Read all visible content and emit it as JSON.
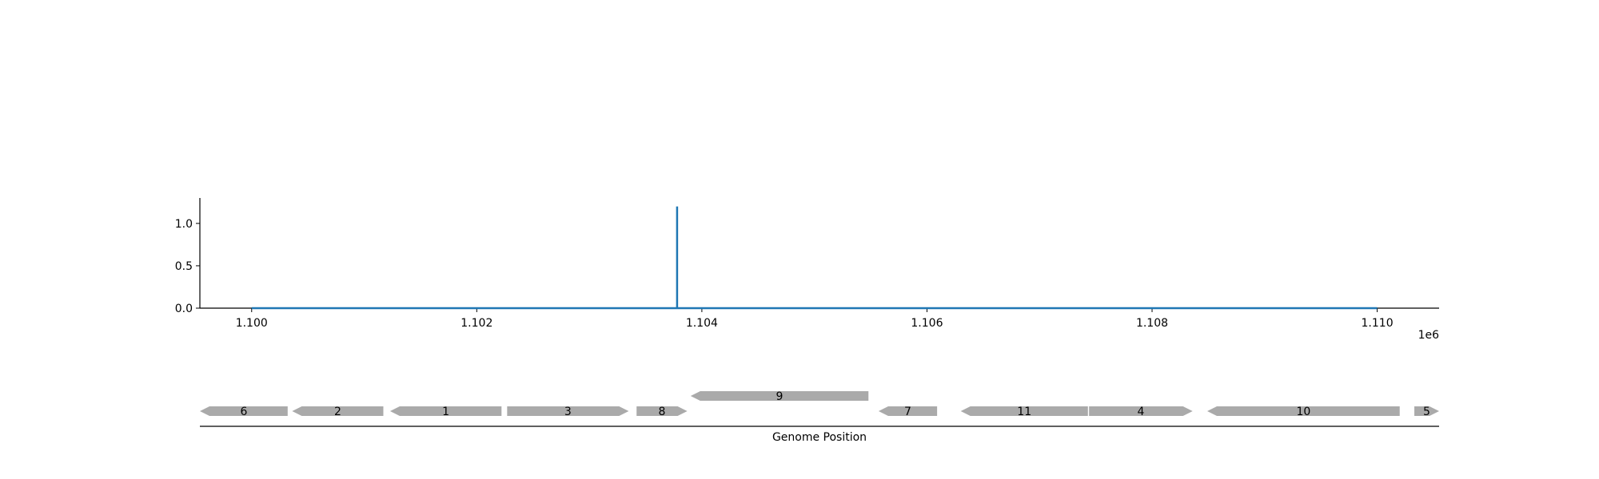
{
  "chart_data": [
    {
      "type": "line",
      "x_scale_label": "1e6",
      "xlim": [
        1.09954,
        1.11055
      ],
      "ylim": [
        0,
        1.3
      ],
      "x_ticks": [
        1.1,
        1.102,
        1.104,
        1.106,
        1.108,
        1.11
      ],
      "x_tick_labels": [
        "1.100",
        "1.102",
        "1.104",
        "1.106",
        "1.108",
        "1.110"
      ],
      "y_ticks": [
        0.0,
        0.5,
        1.0
      ],
      "y_tick_labels": [
        "0.0",
        "0.5",
        "1.0"
      ],
      "grid": false,
      "series": [
        {
          "color": "#1f77b4",
          "x": [
            1.1,
            1.10378,
            1.10378,
            1.10378,
            1.11
          ],
          "y": [
            0,
            0,
            1.2,
            0,
            0
          ]
        }
      ]
    },
    {
      "type": "gene-map",
      "xlabel": "Genome Position",
      "xlim": [
        1.09954,
        1.11055
      ],
      "gene_color": "#aaaaaa",
      "genes": [
        {
          "label": "6",
          "start": 1.09954,
          "end": 1.10032,
          "strand": "-",
          "row": 0
        },
        {
          "label": "2",
          "start": 1.10036,
          "end": 1.10117,
          "strand": "-",
          "row": 0
        },
        {
          "label": "1",
          "start": 1.10123,
          "end": 1.10222,
          "strand": "-",
          "row": 0
        },
        {
          "label": "3",
          "start": 1.10227,
          "end": 1.10335,
          "strand": "+",
          "row": 0
        },
        {
          "label": "8",
          "start": 1.10342,
          "end": 1.10387,
          "strand": "+",
          "row": 0
        },
        {
          "label": "9",
          "start": 1.1039,
          "end": 1.10548,
          "strand": "-",
          "row": 1
        },
        {
          "label": "7",
          "start": 1.10557,
          "end": 1.10609,
          "strand": "-",
          "row": 0
        },
        {
          "label": "11",
          "start": 1.1063,
          "end": 1.10743,
          "strand": "-",
          "row": 0
        },
        {
          "label": "4",
          "start": 1.10744,
          "end": 1.10836,
          "strand": "+",
          "row": 0
        },
        {
          "label": "10",
          "start": 1.10849,
          "end": 1.1102,
          "strand": "-",
          "row": 0
        },
        {
          "label": "5",
          "start": 1.11033,
          "end": 1.11055,
          "strand": "+",
          "row": 0
        }
      ]
    }
  ]
}
